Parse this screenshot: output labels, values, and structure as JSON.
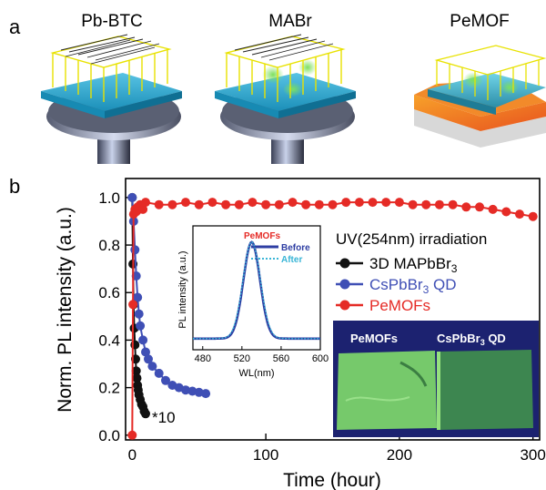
{
  "panel_a": {
    "letter": "a",
    "titles": [
      "Pb-BTC",
      "MABr",
      "PeMOF"
    ]
  },
  "panel_b": {
    "letter": "b",
    "annotation": "*10"
  },
  "colors": {
    "mapbbr3": "#111111",
    "cspbbr3": "#3f4fb5",
    "pemof": "#e52b26",
    "inset_before": "#2e3ea3",
    "inset_after": "#39b5d6",
    "photo_bg": "#1c2270",
    "phosphor": "#7bd36a"
  },
  "chart_data": [
    {
      "type": "line",
      "xlabel": "Time (hour)",
      "ylabel": "Norm. PL intensity (a.u.)",
      "xlim": [
        -5,
        305
      ],
      "ylim": [
        -0.02,
        1.08
      ],
      "xticks": [
        0,
        100,
        200,
        300
      ],
      "yticks": [
        0.0,
        0.2,
        0.4,
        0.6,
        0.8,
        1.0
      ],
      "xtick_labels": [
        "0",
        "100",
        "200",
        "300"
      ],
      "ytick_labels": [
        "0.0",
        "0.2",
        "0.4",
        "0.6",
        "0.8",
        "1.0"
      ],
      "legend_title": "UV(254nm) irradiation",
      "legend_position": "right",
      "series": [
        {
          "name": "3D MAPbBr3",
          "color": "#111111",
          "x": [
            0,
            0.5,
            1,
            1.5,
            2,
            2.5,
            3,
            3.5,
            4,
            4.5,
            5,
            6,
            7,
            8,
            9,
            10
          ],
          "y": [
            1.0,
            0.72,
            0.55,
            0.45,
            0.38,
            0.32,
            0.27,
            0.24,
            0.21,
            0.19,
            0.17,
            0.15,
            0.13,
            0.12,
            0.1,
            0.09
          ]
        },
        {
          "name": "CsPbBr3 QD",
          "color": "#3f4fb5",
          "x": [
            0,
            1,
            2,
            3,
            4,
            5,
            6,
            8,
            10,
            12,
            15,
            20,
            25,
            30,
            35,
            40,
            45,
            50,
            55
          ],
          "y": [
            1.0,
            0.9,
            0.78,
            0.67,
            0.58,
            0.51,
            0.46,
            0.4,
            0.35,
            0.32,
            0.29,
            0.26,
            0.23,
            0.21,
            0.2,
            0.19,
            0.185,
            0.18,
            0.175
          ]
        },
        {
          "name": "PeMOFs",
          "color": "#e52b26",
          "x": [
            0,
            0.5,
            1,
            2,
            3,
            4,
            5,
            6,
            7,
            8,
            10,
            20,
            30,
            40,
            50,
            60,
            70,
            80,
            90,
            100,
            110,
            120,
            130,
            140,
            150,
            160,
            170,
            180,
            190,
            200,
            210,
            220,
            230,
            240,
            250,
            260,
            270,
            280,
            290,
            300
          ],
          "y": [
            0.0,
            0.55,
            0.93,
            0.95,
            0.94,
            0.96,
            0.95,
            0.97,
            0.96,
            0.95,
            0.98,
            0.97,
            0.97,
            0.98,
            0.97,
            0.98,
            0.97,
            0.97,
            0.98,
            0.97,
            0.97,
            0.98,
            0.97,
            0.97,
            0.97,
            0.98,
            0.98,
            0.98,
            0.98,
            0.98,
            0.97,
            0.97,
            0.97,
            0.97,
            0.96,
            0.96,
            0.95,
            0.94,
            0.93,
            0.92
          ]
        }
      ]
    },
    {
      "type": "line",
      "title": "PeMOFs",
      "xlabel": "WL(nm)",
      "ylabel": "PL intensity (a.u.)",
      "xlim": [
        470,
        600
      ],
      "xticks": [
        480,
        520,
        560,
        600
      ],
      "xtick_labels": [
        "480",
        "520",
        "560",
        "600"
      ],
      "series": [
        {
          "name": "Before",
          "color": "#2e3ea3",
          "center": 530,
          "fwhm": 20
        },
        {
          "name": "After",
          "color": "#39b5d6",
          "center": 530,
          "fwhm": 21
        }
      ]
    }
  ],
  "photo": {
    "label_left": "PeMOFs",
    "label_right": "CsPbBr3 QD"
  }
}
